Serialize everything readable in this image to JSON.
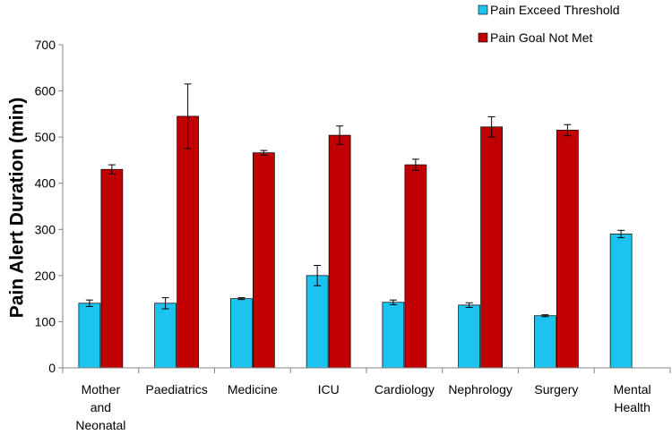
{
  "chart_data": {
    "type": "bar",
    "title": "",
    "xlabel": "",
    "ylabel": "Pain Alert Duration (min)",
    "ylim": [
      0,
      700
    ],
    "yticks": [
      0,
      100,
      200,
      300,
      400,
      500,
      600,
      700
    ],
    "grid": false,
    "legend_position": "top-right",
    "categories": [
      [
        "Mother",
        "and",
        "Neonatal"
      ],
      [
        "Paediatrics"
      ],
      [
        "Medicine"
      ],
      [
        "ICU"
      ],
      [
        "Cardiology"
      ],
      [
        "Nephrology"
      ],
      [
        "Surgery"
      ],
      [
        "Mental",
        "Health"
      ]
    ],
    "series": [
      {
        "name": "Pain Exceed Threshold",
        "color": "#1BC3EE",
        "values": [
          140,
          140,
          150,
          200,
          142,
          136,
          113,
          290
        ],
        "errors": [
          7,
          12,
          2,
          22,
          5,
          5,
          2,
          8
        ]
      },
      {
        "name": "Pain Goal Not Met",
        "color": "#C00000",
        "values": [
          430,
          545,
          466,
          504,
          440,
          522,
          515,
          null
        ],
        "errors": [
          10,
          70,
          5,
          20,
          12,
          22,
          12,
          null
        ]
      }
    ]
  }
}
